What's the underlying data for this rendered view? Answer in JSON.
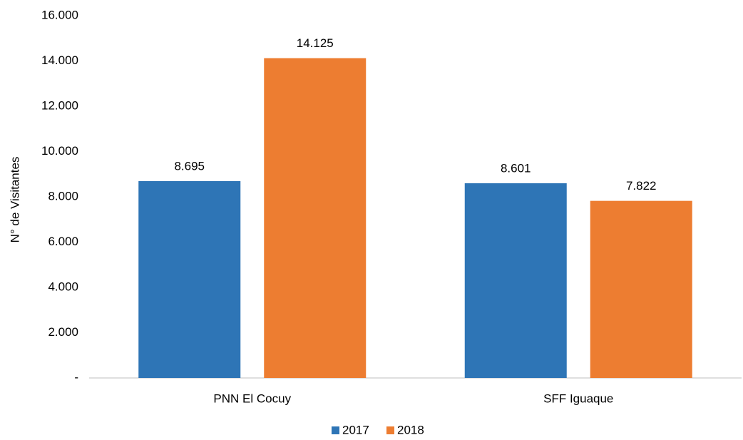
{
  "chart_data": {
    "type": "bar",
    "y_label": "N° de Visitantes",
    "categories": [
      "PNN El Cocuy",
      "SFF Iguaque"
    ],
    "series": [
      {
        "name": "2017",
        "color": "#2e75b6",
        "values": [
          8695,
          8601
        ],
        "value_labels": [
          "8.695",
          "8.601"
        ]
      },
      {
        "name": "2018",
        "color": "#ed7d31",
        "values": [
          14125,
          7822
        ],
        "value_labels": [
          "14.125",
          "7.822"
        ]
      }
    ],
    "ylim": [
      0,
      16000
    ],
    "yticks": [
      {
        "value": 0,
        "label": "-"
      },
      {
        "value": 2000,
        "label": "2.000"
      },
      {
        "value": 4000,
        "label": "4.000"
      },
      {
        "value": 6000,
        "label": "6.000"
      },
      {
        "value": 8000,
        "label": "8.000"
      },
      {
        "value": 10000,
        "label": "10.000"
      },
      {
        "value": 12000,
        "label": "12.000"
      },
      {
        "value": 14000,
        "label": "14.000"
      },
      {
        "value": 16000,
        "label": "16.000"
      }
    ],
    "grid": false,
    "legend": "bottom"
  }
}
